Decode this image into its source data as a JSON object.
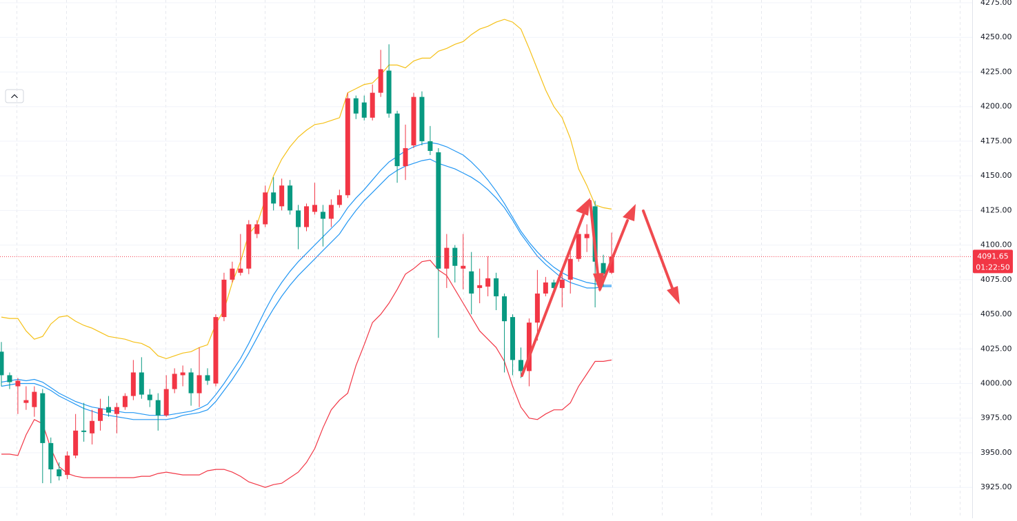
{
  "chart_data": {
    "type": "candlestick",
    "open": [
      4023,
      4006,
      3998,
      3986,
      3983,
      3993,
      3957,
      3938,
      3934,
      3948,
      3966,
      3964,
      3973,
      3983,
      3978,
      3983,
      3991,
      4008,
      3992,
      3988,
      3977,
      3996,
      4006,
      4008,
      3993,
      4006,
      4000,
      4048,
      4075,
      4080,
      4083,
      4108,
      4115,
      4138,
      4128,
      4143,
      4125,
      4113,
      4124,
      4124,
      4119,
      4129,
      4136,
      4206,
      4203,
      4192,
      4210,
      4226,
      4195,
      4157,
      4172,
      4207,
      4175,
      4167,
      4083,
      4098,
      4083,
      4081,
      4069,
      4070,
      4076,
      4063,
      4048,
      4017,
      4009,
      4044,
      4065,
      4073,
      4069,
      4075,
      4090,
      4105,
      4128,
      4087,
      4080
    ],
    "high": [
      4030,
      4008,
      4004,
      3998,
      3998,
      3996,
      3961,
      3943,
      3951,
      3978,
      3986,
      3981,
      3989,
      3991,
      3986,
      3993,
      4017,
      4019,
      3996,
      3993,
      4006,
      4011,
      4013,
      4011,
      4026,
      4011,
      4050,
      4080,
      4088,
      4108,
      4118,
      4118,
      4143,
      4149,
      4148,
      4147,
      4129,
      4130,
      4145,
      4129,
      4133,
      4140,
      4210,
      4208,
      4208,
      4216,
      4241,
      4245,
      4197,
      4187,
      4210,
      4211,
      4186,
      4170,
      4108,
      4100,
      4108,
      4095,
      4083,
      4092,
      4080,
      4065,
      4050,
      4026,
      4047,
      4082,
      4077,
      4075,
      4082,
      4098,
      4110,
      4115,
      4132,
      4093,
      4109
    ],
    "low": [
      3998,
      3996,
      3978,
      3981,
      3976,
      3928,
      3928,
      3930,
      3931,
      3946,
      3958,
      3956,
      3966,
      3976,
      3964,
      3981,
      3988,
      3989,
      3983,
      3966,
      3976,
      3993,
      3998,
      3984,
      3983,
      3999,
      3998,
      4045,
      4073,
      4078,
      4079,
      4105,
      4113,
      4125,
      4125,
      4122,
      4097,
      4110,
      4122,
      4099,
      4113,
      4127,
      4134,
      4191,
      4190,
      4190,
      4207,
      4192,
      4145,
      4147,
      4170,
      4172,
      4165,
      4033,
      4069,
      4073,
      4068,
      4050,
      4058,
      4063,
      4053,
      4008,
      4006,
      4004,
      3998,
      4031,
      4063,
      4065,
      4055,
      4065,
      4088,
      4095,
      4055,
      4070,
      4079
    ],
    "close": [
      4006,
      4001,
      4002,
      3988,
      3994,
      3957,
      3938,
      3933,
      3948,
      3966,
      3965,
      3973,
      3982,
      3979,
      3983,
      3991,
      4008,
      3992,
      3988,
      3977,
      3996,
      4007,
      4008,
      3993,
      4006,
      4002,
      4048,
      4075,
      4083,
      4083,
      4115,
      4115,
      4138,
      4130,
      4143,
      4125,
      4113,
      4128,
      4129,
      4119,
      4129,
      4136,
      4206,
      4195,
      4192,
      4210,
      4227,
      4195,
      4157,
      4170,
      4207,
      4175,
      4168,
      4083,
      4098,
      4085,
      4085,
      4065,
      4071,
      4076,
      4063,
      4045,
      4017,
      4009,
      4044,
      4065,
      4073,
      4069,
      4075,
      4090,
      4108,
      4108,
      4088,
      4079,
      4091.65
    ],
    "up_color": "#f23645",
    "down_color": "#089981",
    "series": [
      {
        "color": "#f5c016",
        "values": [
          4048,
          4047,
          4047,
          4038,
          4032,
          4034,
          4043,
          4048,
          4049,
          4045,
          4042,
          4040,
          4037,
          4034,
          4033,
          4032,
          4030,
          4029,
          4026,
          4020,
          4018,
          4020,
          4022,
          4023,
          4026,
          4028,
          4043,
          4053,
          4073,
          4088,
          4108,
          4115,
          4133,
          4150,
          4162,
          4171,
          4178,
          4183,
          4187,
          4188,
          4190,
          4192,
          4210,
          4213,
          4216,
          4217,
          4223,
          4230,
          4230,
          4228,
          4233,
          4235,
          4235,
          4240,
          4242,
          4245,
          4247,
          4252,
          4256,
          4258,
          4261,
          4263,
          4261,
          4256,
          4242,
          4227,
          4212,
          4200,
          4192,
          4177,
          4155,
          4143,
          4129,
          4127,
          4126
        ]
      },
      {
        "color": "#f23645",
        "values": [
          3949,
          3949,
          3948,
          3963,
          3974,
          3971,
          3953,
          3940,
          3935,
          3933,
          3932,
          3932,
          3932,
          3932,
          3932,
          3932,
          3932,
          3933,
          3933,
          3935,
          3936,
          3935,
          3934,
          3934,
          3934,
          3937,
          3938,
          3938,
          3936,
          3933,
          3929,
          3927,
          3925,
          3927,
          3928,
          3932,
          3936,
          3943,
          3953,
          3968,
          3981,
          3988,
          3993,
          4013,
          4028,
          4044,
          4050,
          4058,
          4068,
          4079,
          4083,
          4088,
          4089,
          4082,
          4078,
          4068,
          4058,
          4048,
          4038,
          4032,
          4026,
          4016,
          3998,
          3983,
          3975,
          3974,
          3978,
          3981,
          3981,
          3986,
          3998,
          4007,
          4016,
          4016,
          4017
        ]
      },
      {
        "color": "#2196f3",
        "values": [
          4001,
          4002,
          4003,
          4002,
          4003,
          4001,
          3997,
          3993,
          3990,
          3987,
          3985,
          3983,
          3982,
          3981,
          3980,
          3979,
          3979,
          3978,
          3977,
          3977,
          3977,
          3978,
          3979,
          3980,
          3982,
          3985,
          3992,
          4000,
          4009,
          4018,
          4029,
          4041,
          4053,
          4064,
          4073,
          4081,
          4088,
          4094,
          4100,
          4106,
          4112,
          4118,
          4127,
          4134,
          4140,
          4147,
          4154,
          4160,
          4164,
          4168,
          4171,
          4173,
          4174,
          4173,
          4171,
          4168,
          4165,
          4160,
          4154,
          4147,
          4139,
          4130,
          4120,
          4110,
          4102,
          4095,
          4089,
          4084,
          4080,
          4077,
          4075,
          4073,
          4072,
          4071,
          4071
        ]
      },
      {
        "color": "#2196f3",
        "values": [
          3998,
          3999,
          4000,
          4000,
          4000,
          3998,
          3995,
          3991,
          3988,
          3985,
          3982,
          3980,
          3978,
          3977,
          3976,
          3975,
          3974,
          3974,
          3974,
          3974,
          3974,
          3975,
          3977,
          3978,
          3979,
          3981,
          3987,
          3995,
          4003,
          4012,
          4022,
          4033,
          4044,
          4054,
          4063,
          4071,
          4078,
          4084,
          4090,
          4096,
          4102,
          4108,
          4117,
          4125,
          4132,
          4138,
          4144,
          4150,
          4154,
          4157,
          4159,
          4161,
          4162,
          4159,
          4157,
          4155,
          4152,
          4149,
          4145,
          4140,
          4134,
          4127,
          4118,
          4108,
          4100,
          4092,
          4086,
          4081,
          4076,
          4073,
          4071,
          4069,
          4069,
          4070,
          4070
        ]
      }
    ],
    "ylim": [
      3902.7,
      4277
    ],
    "yticks": [
      {
        "value": 3925,
        "label": "3925.00"
      },
      {
        "value": 3950,
        "label": "3950.00"
      },
      {
        "value": 3975,
        "label": "3975.00"
      },
      {
        "value": 4000,
        "label": "4000.00"
      },
      {
        "value": 4025,
        "label": "4025.00"
      },
      {
        "value": 4050,
        "label": "4050.00"
      },
      {
        "value": 4075,
        "label": "4075.00"
      },
      {
        "value": 4100,
        "label": "4100.00"
      },
      {
        "value": 4125,
        "label": "4125.00"
      },
      {
        "value": 4150,
        "label": "4150.00"
      },
      {
        "value": 4175,
        "label": "4175.00"
      },
      {
        "value": 4200,
        "label": "4200.00"
      },
      {
        "value": 4225,
        "label": "4225.00"
      },
      {
        "value": 4250,
        "label": "4250.00"
      },
      {
        "value": 4275,
        "label": "4275.00"
      }
    ],
    "grid": true,
    "last_price": 4091.65,
    "countdown": "01:22:50",
    "last_price_color": "#f23645"
  }
}
